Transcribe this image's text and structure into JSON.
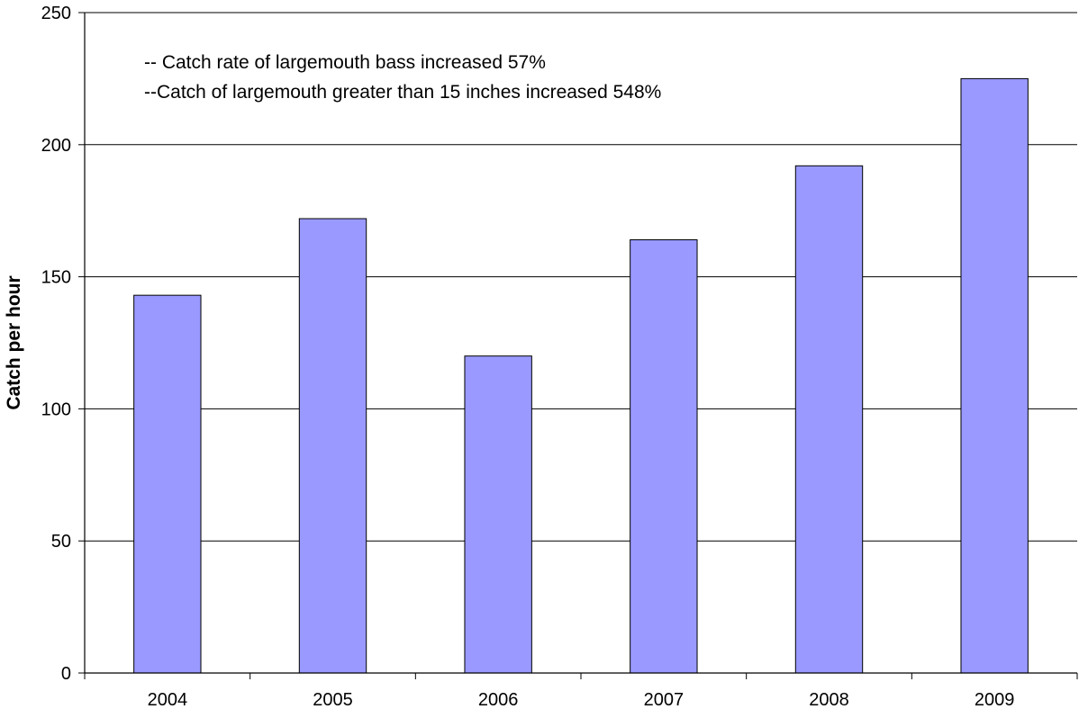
{
  "chart_data": {
    "type": "bar",
    "categories": [
      "2004",
      "2005",
      "2006",
      "2007",
      "2008",
      "2009"
    ],
    "values": [
      143,
      172,
      120,
      164,
      192,
      225
    ],
    "title": "",
    "xlabel": "",
    "ylabel": "Catch per hour",
    "ylim": [
      0,
      250
    ],
    "yticks": [
      "0",
      "50",
      "100",
      "150",
      "200",
      "250"
    ],
    "grid": true,
    "legend": "none",
    "bar_color": "#9999FF",
    "bar_stroke": "#000000",
    "annotations": [
      "-- Catch rate of largemouth bass increased  57%",
      "--Catch of largemouth greater than  15 inches increased 548%"
    ]
  }
}
